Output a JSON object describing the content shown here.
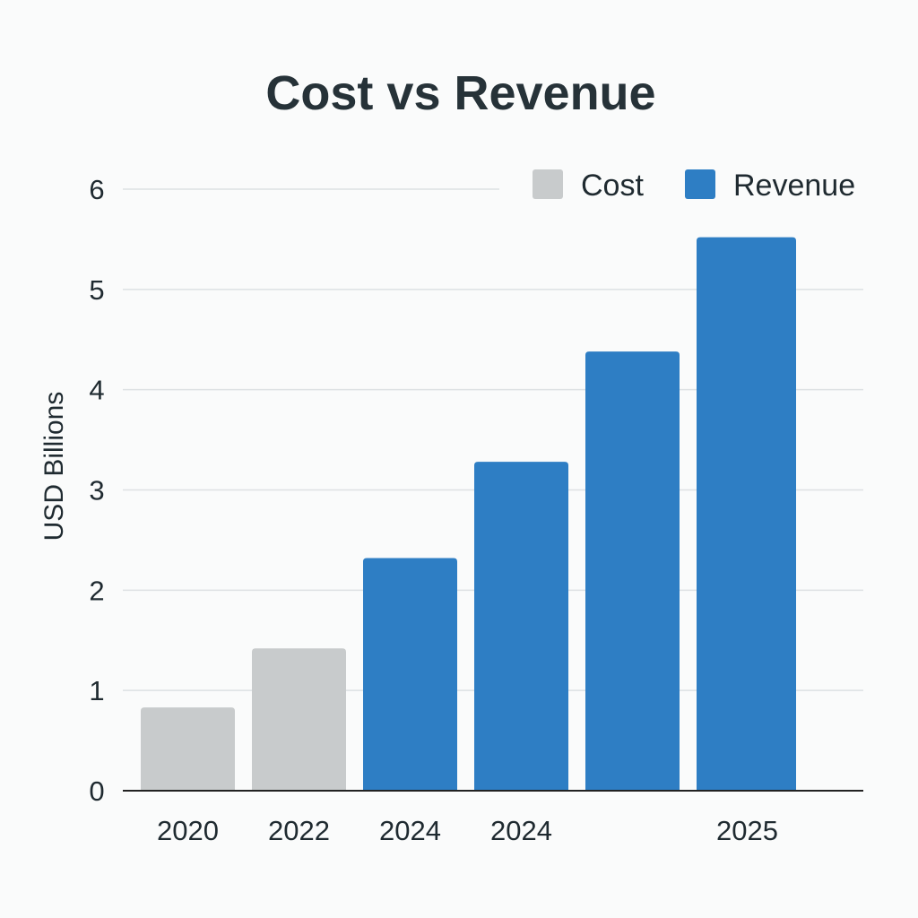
{
  "chart_data": {
    "type": "bar",
    "title": "Cost vs Revenue",
    "xlabel": "",
    "ylabel": "USD Billions",
    "ylim": [
      0,
      6
    ],
    "yticks": [
      "0",
      "1",
      "2",
      "3",
      "4",
      "5",
      "6"
    ],
    "grid": true,
    "legend_position": "top-right",
    "categories": [
      "2020",
      "2022",
      "2024",
      "2024",
      "",
      "2025"
    ],
    "values": [
      0.83,
      1.42,
      2.32,
      3.28,
      4.38,
      5.52
    ],
    "bar_series": [
      "Cost",
      "Cost",
      "Revenue",
      "Revenue",
      "Revenue",
      "Revenue"
    ],
    "series": [
      {
        "name": "Cost",
        "color": "#c8cbcc"
      },
      {
        "name": "Revenue",
        "color": "#2e7ec4"
      }
    ]
  }
}
